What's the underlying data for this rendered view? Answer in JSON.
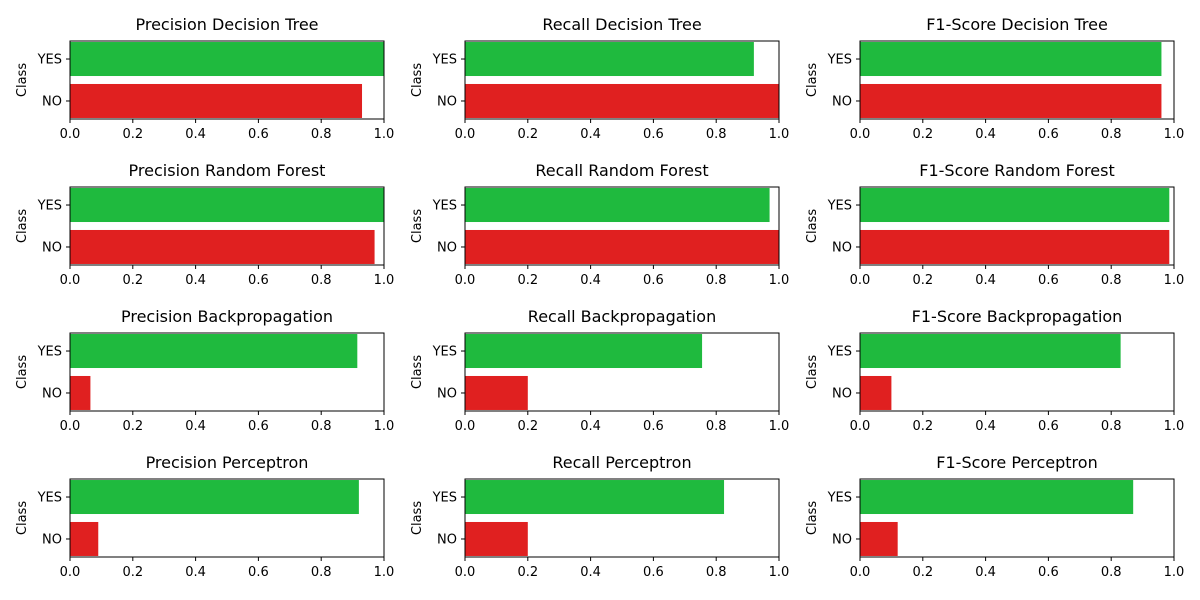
{
  "colors": {
    "yes": "#1fba3e",
    "no": "#e02020"
  },
  "chart_data": [
    {
      "type": "bar",
      "orientation": "horizontal",
      "title": "Precision Decision Tree",
      "ylabel": "Class",
      "xlabel": "",
      "categories": [
        "YES",
        "NO"
      ],
      "values": [
        1.0,
        0.93
      ],
      "xlim": [
        0,
        1
      ],
      "xticks": [
        "0.0",
        "0.2",
        "0.4",
        "0.6",
        "0.8",
        "1.0"
      ],
      "grid": false
    },
    {
      "type": "bar",
      "orientation": "horizontal",
      "title": "Recall Decision Tree",
      "ylabel": "Class",
      "xlabel": "",
      "categories": [
        "YES",
        "NO"
      ],
      "values": [
        0.92,
        1.0
      ],
      "xlim": [
        0,
        1
      ],
      "xticks": [
        "0.0",
        "0.2",
        "0.4",
        "0.6",
        "0.8",
        "1.0"
      ],
      "grid": false
    },
    {
      "type": "bar",
      "orientation": "horizontal",
      "title": "F1-Score Decision Tree",
      "ylabel": "Class",
      "xlabel": "",
      "categories": [
        "YES",
        "NO"
      ],
      "values": [
        0.96,
        0.96
      ],
      "xlim": [
        0,
        1
      ],
      "xticks": [
        "0.0",
        "0.2",
        "0.4",
        "0.6",
        "0.8",
        "1.0"
      ],
      "grid": false
    },
    {
      "type": "bar",
      "orientation": "horizontal",
      "title": "Precision Random Forest",
      "ylabel": "Class",
      "xlabel": "",
      "categories": [
        "YES",
        "NO"
      ],
      "values": [
        1.0,
        0.97
      ],
      "xlim": [
        0,
        1
      ],
      "xticks": [
        "0.0",
        "0.2",
        "0.4",
        "0.6",
        "0.8",
        "1.0"
      ],
      "grid": false
    },
    {
      "type": "bar",
      "orientation": "horizontal",
      "title": "Recall Random Forest",
      "ylabel": "Class",
      "xlabel": "",
      "categories": [
        "YES",
        "NO"
      ],
      "values": [
        0.97,
        1.0
      ],
      "xlim": [
        0,
        1
      ],
      "xticks": [
        "0.0",
        "0.2",
        "0.4",
        "0.6",
        "0.8",
        "1.0"
      ],
      "grid": false
    },
    {
      "type": "bar",
      "orientation": "horizontal",
      "title": "F1-Score Random Forest",
      "ylabel": "Class",
      "xlabel": "",
      "categories": [
        "YES",
        "NO"
      ],
      "values": [
        0.985,
        0.985
      ],
      "xlim": [
        0,
        1
      ],
      "xticks": [
        "0.0",
        "0.2",
        "0.4",
        "0.6",
        "0.8",
        "1.0"
      ],
      "grid": false
    },
    {
      "type": "bar",
      "orientation": "horizontal",
      "title": "Precision Backpropagation",
      "ylabel": "Class",
      "xlabel": "",
      "categories": [
        "YES",
        "NO"
      ],
      "values": [
        0.915,
        0.065
      ],
      "xlim": [
        0,
        1
      ],
      "xticks": [
        "0.0",
        "0.2",
        "0.4",
        "0.6",
        "0.8",
        "1.0"
      ],
      "grid": false
    },
    {
      "type": "bar",
      "orientation": "horizontal",
      "title": "Recall Backpropagation",
      "ylabel": "Class",
      "xlabel": "",
      "categories": [
        "YES",
        "NO"
      ],
      "values": [
        0.755,
        0.2
      ],
      "xlim": [
        0,
        1
      ],
      "xticks": [
        "0.0",
        "0.2",
        "0.4",
        "0.6",
        "0.8",
        "1.0"
      ],
      "grid": false
    },
    {
      "type": "bar",
      "orientation": "horizontal",
      "title": "F1-Score Backpropagation",
      "ylabel": "Class",
      "xlabel": "",
      "categories": [
        "YES",
        "NO"
      ],
      "values": [
        0.83,
        0.1
      ],
      "xlim": [
        0,
        1
      ],
      "xticks": [
        "0.0",
        "0.2",
        "0.4",
        "0.6",
        "0.8",
        "1.0"
      ],
      "grid": false
    },
    {
      "type": "bar",
      "orientation": "horizontal",
      "title": "Precision Perceptron",
      "ylabel": "Class",
      "xlabel": "",
      "categories": [
        "YES",
        "NO"
      ],
      "values": [
        0.92,
        0.09
      ],
      "xlim": [
        0,
        1
      ],
      "xticks": [
        "0.0",
        "0.2",
        "0.4",
        "0.6",
        "0.8",
        "1.0"
      ],
      "grid": false
    },
    {
      "type": "bar",
      "orientation": "horizontal",
      "title": "Recall Perceptron",
      "ylabel": "Class",
      "xlabel": "",
      "categories": [
        "YES",
        "NO"
      ],
      "values": [
        0.825,
        0.2
      ],
      "xlim": [
        0,
        1
      ],
      "xticks": [
        "0.0",
        "0.2",
        "0.4",
        "0.6",
        "0.8",
        "1.0"
      ],
      "grid": false
    },
    {
      "type": "bar",
      "orientation": "horizontal",
      "title": "F1-Score Perceptron",
      "ylabel": "Class",
      "xlabel": "",
      "categories": [
        "YES",
        "NO"
      ],
      "values": [
        0.87,
        0.12
      ],
      "xlim": [
        0,
        1
      ],
      "xticks": [
        "0.0",
        "0.2",
        "0.4",
        "0.6",
        "0.8",
        "1.0"
      ],
      "grid": false
    }
  ]
}
